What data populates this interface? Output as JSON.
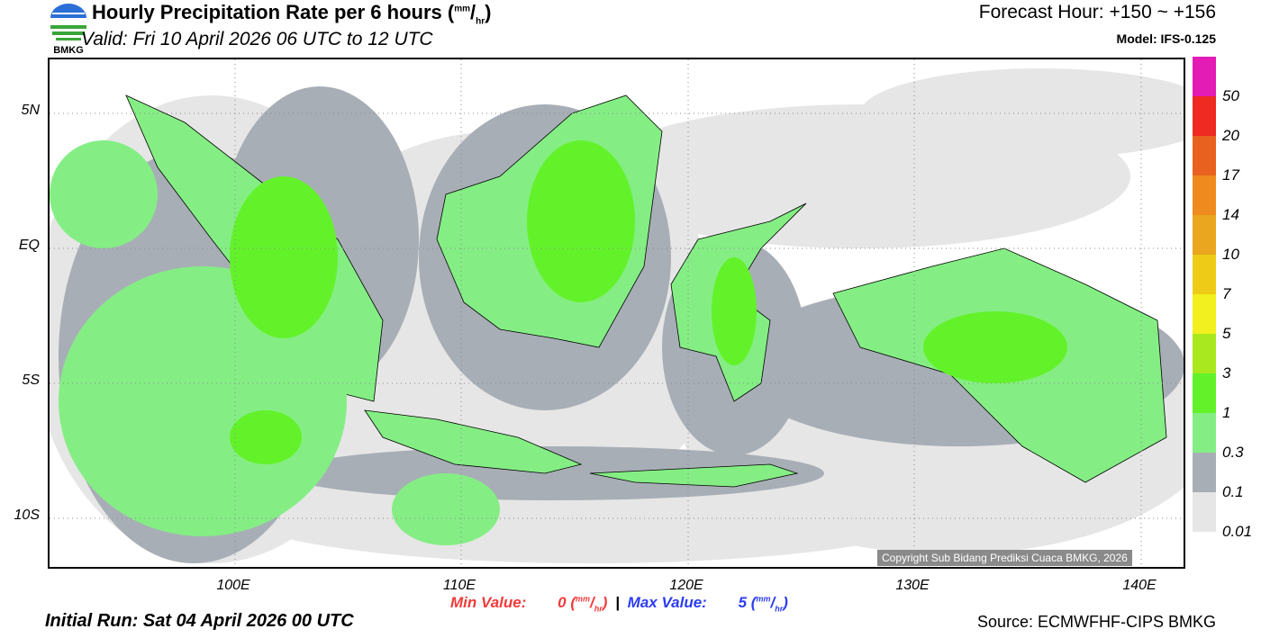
{
  "header": {
    "title": "Hourly Precipitation Rate per 6 hours (",
    "unit_num": "mm",
    "unit_den": "hr",
    "title_end": ")",
    "valid": "Valid: Fri 10 April 2026 06 UTC to 12 UTC",
    "forecast_hour": "Forecast Hour: +150 ~ +156",
    "model": "Model: IFS-0.125",
    "logo_text": "BMKG"
  },
  "axes": {
    "lat_labels": [
      "5N",
      "EQ",
      "5S",
      "10S"
    ],
    "lon_labels": [
      "100E",
      "110E",
      "120E",
      "130E",
      "140E"
    ]
  },
  "footer": {
    "min_label": "Min Value:",
    "min_value": "0",
    "max_label": "Max Value:",
    "max_value": "5",
    "unit_num": "mm",
    "unit_den": "hr",
    "separator": "|",
    "initial_run": "Initial Run: Sat 04 April 2026 00 UTC",
    "source": "Source: ECMWFHF-CIPS BMKG",
    "copyright": "Copyright Sub Bidang Prediksi Cuaca BMKG, 2026"
  },
  "colorbar": {
    "labels": [
      "50",
      "20",
      "17",
      "14",
      "10",
      "7",
      "5",
      "3",
      "1",
      "0.3",
      "0.1",
      "0.01"
    ],
    "colors": [
      "#e31cb5",
      "#ee2a22",
      "#e8611f",
      "#ef8a1e",
      "#e9a61e",
      "#eecb16",
      "#f2f01e",
      "#a9e81e",
      "#63f22a",
      "#84ee84",
      "#a8aeb6",
      "#e6e6e6"
    ]
  }
}
